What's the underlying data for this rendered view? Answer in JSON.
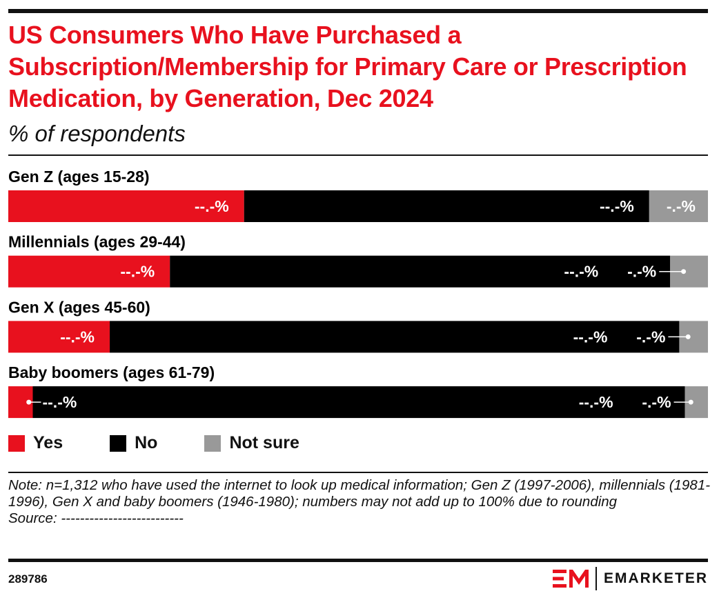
{
  "header": {
    "title": "US Consumers Who Have Purchased a Subscription/Membership for Primary Care or Prescription Medication, by Generation, Dec 2024",
    "subtitle": "% of respondents"
  },
  "chart_data": {
    "type": "bar",
    "orientation": "horizontal",
    "stacked": true,
    "categories": [
      "Gen Z (ages 15-28)",
      "Millennials (ages 29-44)",
      "Gen X (ages 45-60)",
      "Baby boomers (ages 61-79)"
    ],
    "series": [
      {
        "name": "Yes",
        "color": "#e8111e",
        "values": [
          33.7,
          23.1,
          14.5,
          3.5
        ],
        "labels": [
          "--.-%",
          "--.-%",
          "--.-%",
          "--.-%"
        ]
      },
      {
        "name": "No",
        "color": "#000000",
        "values": [
          57.9,
          71.5,
          81.4,
          93.2
        ],
        "labels": [
          "--.-%",
          "--.-%",
          "--.-%",
          "--.-%"
        ]
      },
      {
        "name": "Not sure",
        "color": "#999999",
        "values": [
          8.4,
          5.4,
          4.1,
          3.3
        ],
        "labels": [
          "-.-%",
          "-.-%",
          "-.-%",
          "-.-%"
        ]
      }
    ],
    "xlim": [
      0,
      100
    ],
    "legend": "bottom-left"
  },
  "footer": {
    "note": "Note: n=1,312 who have used the internet to look up medical information; Gen Z (1997-2006), millennials (1981-1996), Gen X and baby boomers (1946-1980); numbers may not add up to 100% due to rounding",
    "source": "Source: --------------------------",
    "chart_id": "289786",
    "brand": "EMARKETER",
    "logo_color": "#e8111e"
  }
}
